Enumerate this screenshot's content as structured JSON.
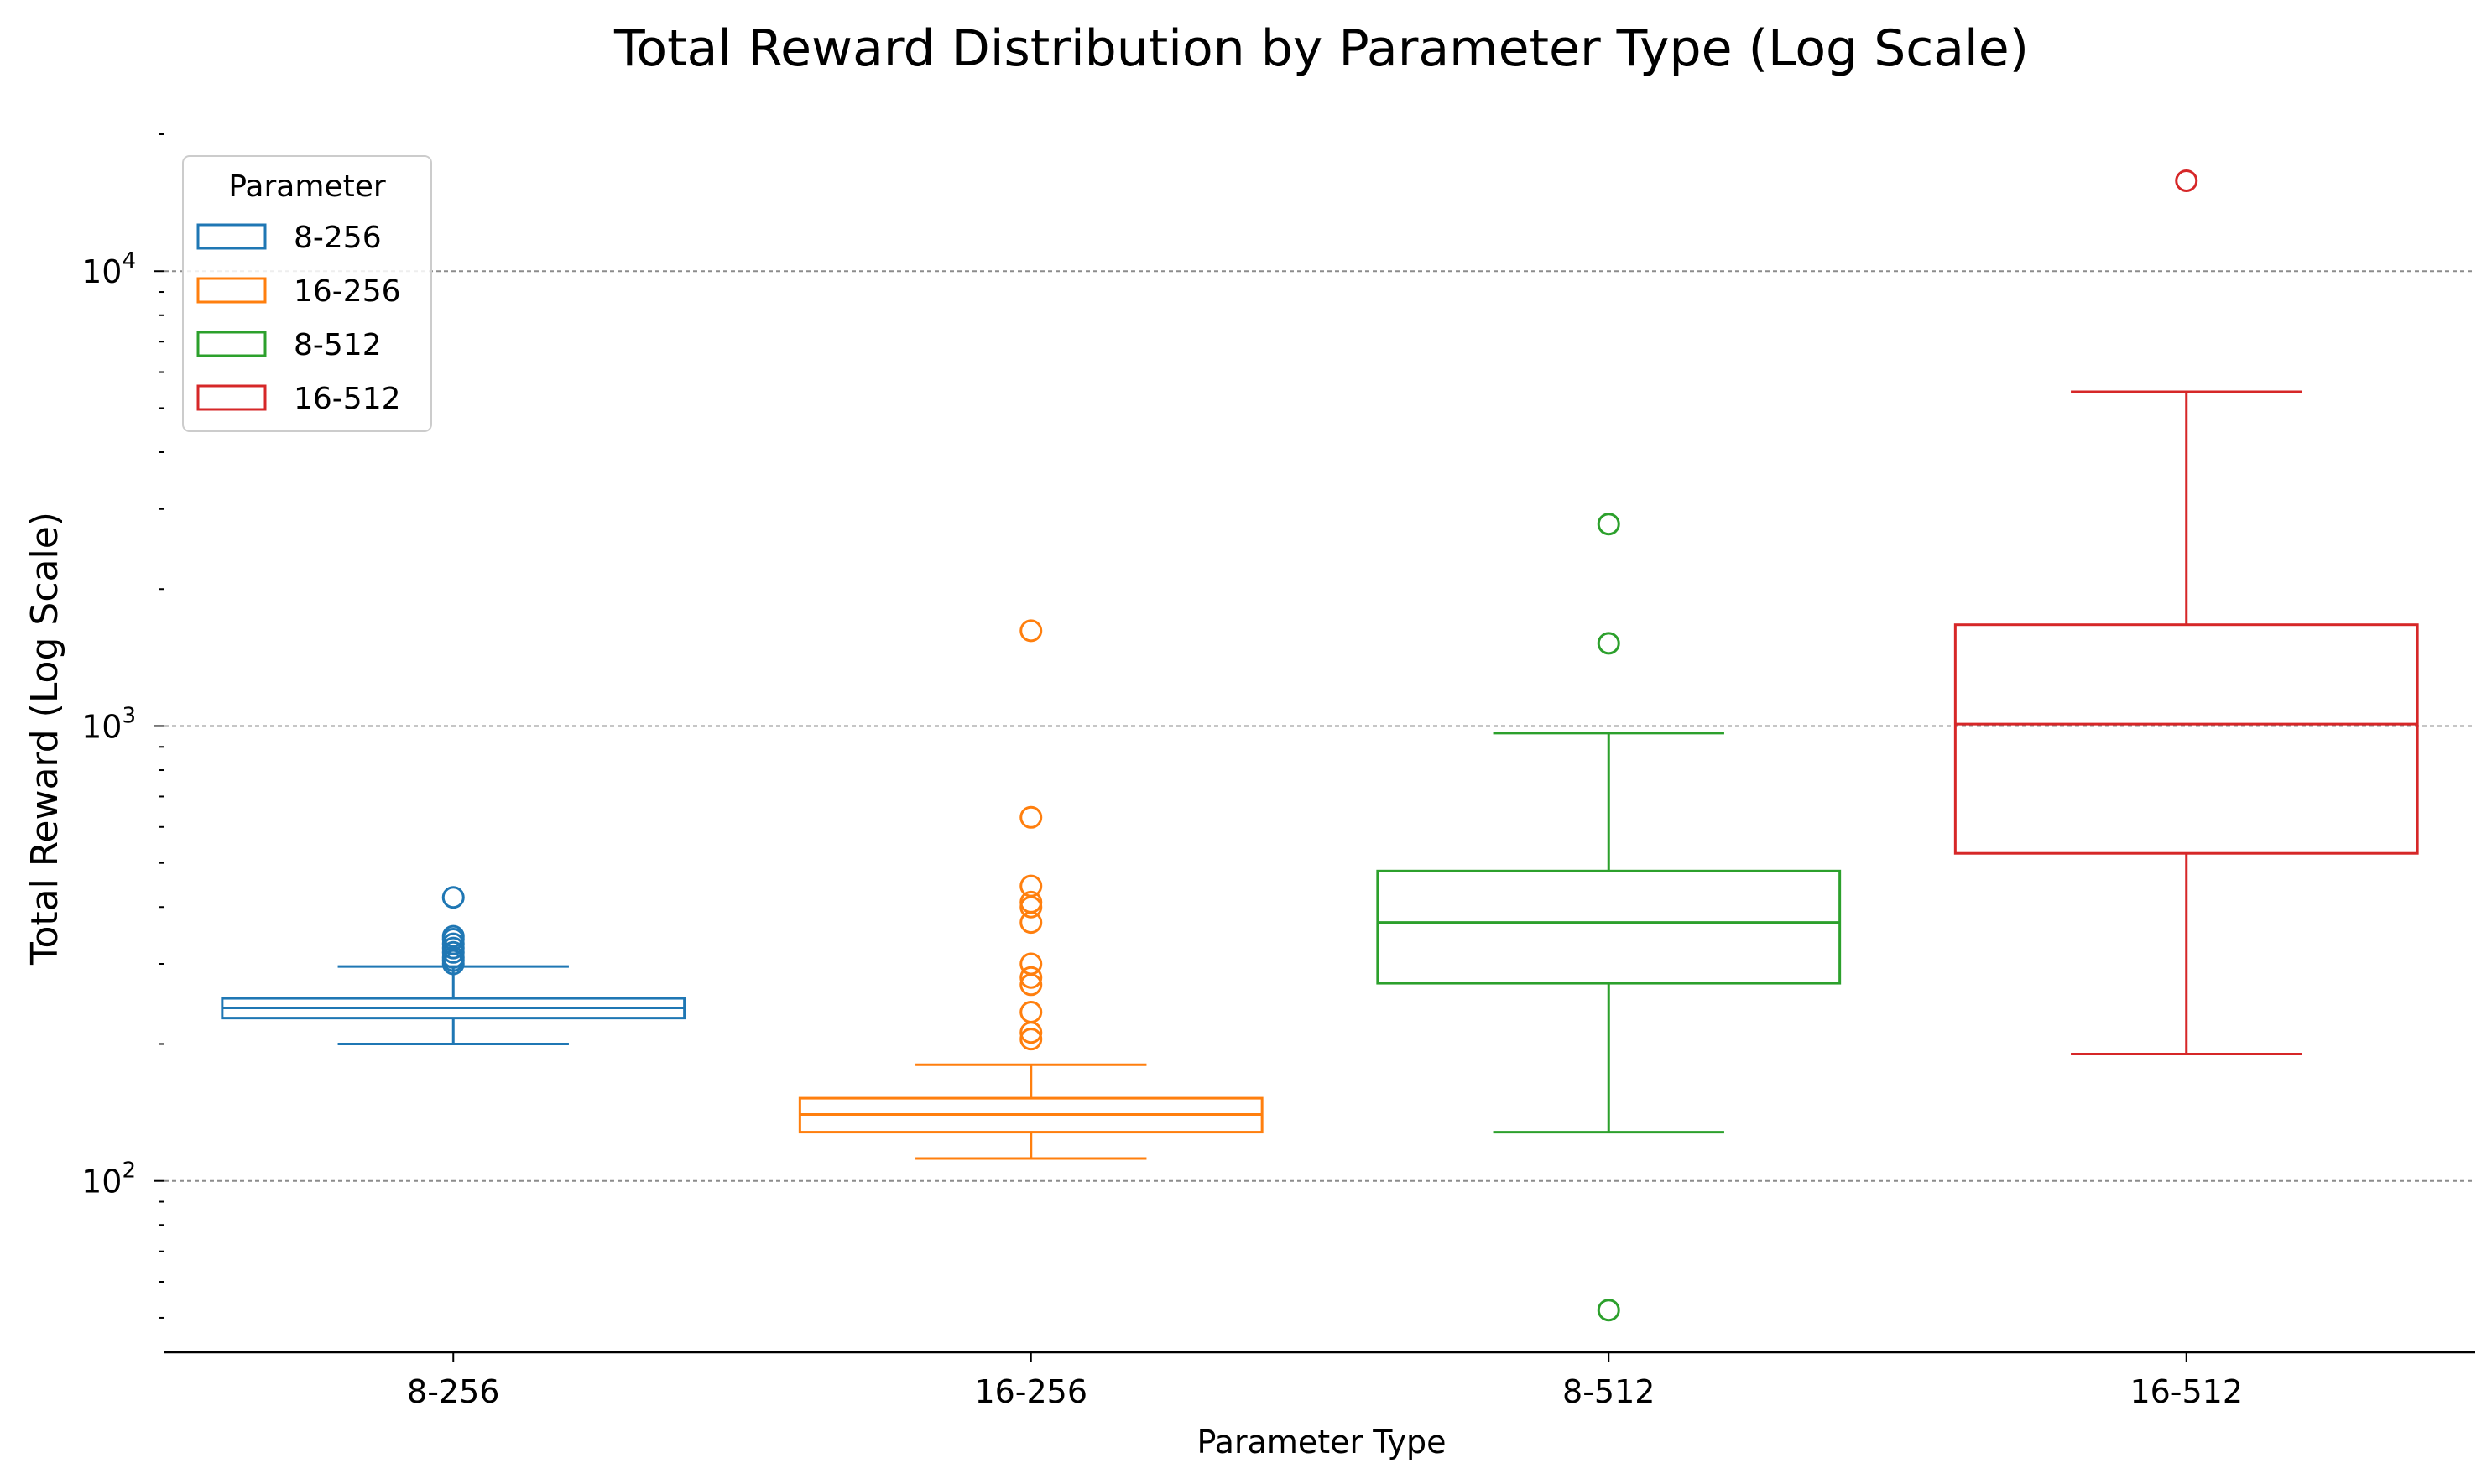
{
  "chart_data": {
    "type": "box",
    "title": "Total Reward Distribution by Parameter Type (Log Scale)",
    "xlabel": "Parameter Type",
    "ylabel": "Total Reward (Log Scale)",
    "yscale": "log",
    "ylim": [
      42,
      20000
    ],
    "yticks": [
      {
        "value": 100,
        "base": "10",
        "exp": "2"
      },
      {
        "value": 1000,
        "base": "10",
        "exp": "3"
      },
      {
        "value": 10000,
        "base": "10",
        "exp": "4"
      }
    ],
    "grid": "horizontal-dashed",
    "legend": {
      "title": "Parameter",
      "placement": "top-left"
    },
    "categories": [
      "8-256",
      "16-256",
      "8-512",
      "16-512"
    ],
    "series": [
      {
        "name": "8-256",
        "color": "#1f77b4",
        "whisker_low": 200,
        "q1": 228,
        "median": 240,
        "q3": 252,
        "whisker_high": 296,
        "outliers": [
          300,
          305,
          310,
          318,
          325,
          332,
          340,
          345,
          420
        ]
      },
      {
        "name": "16-256",
        "color": "#ff7f0e",
        "whisker_low": 112,
        "q1": 128,
        "median": 140,
        "q3": 152,
        "whisker_high": 180,
        "outliers": [
          205,
          212,
          235,
          270,
          280,
          300,
          370,
          400,
          410,
          445,
          630,
          1620
        ]
      },
      {
        "name": "8-512",
        "color": "#2ca02c",
        "whisker_low": 128,
        "q1": 272,
        "median": 370,
        "q3": 480,
        "whisker_high": 965,
        "outliers": [
          52,
          1520,
          2780
        ]
      },
      {
        "name": "16-512",
        "color": "#d62728",
        "whisker_low": 190,
        "q1": 525,
        "median": 1010,
        "q3": 1670,
        "whisker_high": 5430,
        "outliers": [
          15800
        ]
      }
    ]
  }
}
